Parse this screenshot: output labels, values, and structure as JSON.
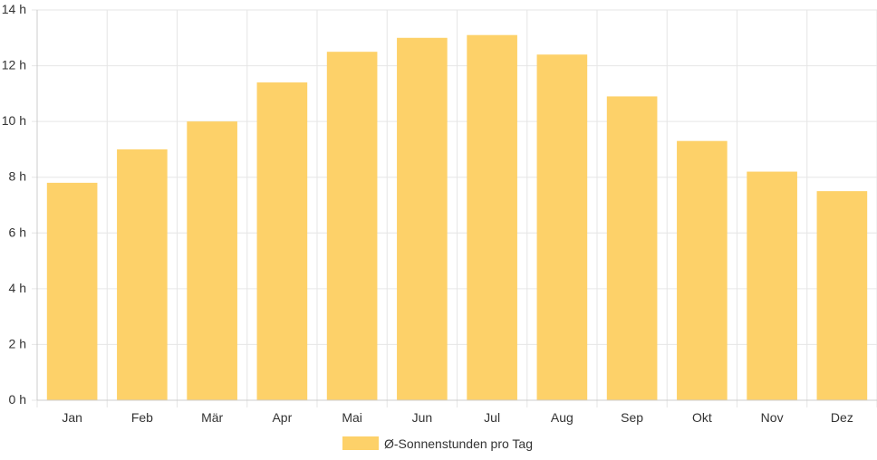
{
  "chart_data": {
    "type": "bar",
    "categories": [
      "Jan",
      "Feb",
      "Mär",
      "Apr",
      "Mai",
      "Jun",
      "Jul",
      "Aug",
      "Sep",
      "Okt",
      "Nov",
      "Dez"
    ],
    "series": [
      {
        "name": "Ø-Sonnenstunden pro Tag",
        "values": [
          7.8,
          9.0,
          10.0,
          11.4,
          12.5,
          13.0,
          13.1,
          12.4,
          10.9,
          9.3,
          8.2,
          7.5
        ],
        "color": "#fdd169"
      }
    ],
    "y_ticks": [
      "0 h",
      "2 h",
      "4 h",
      "6 h",
      "8 h",
      "10 h",
      "12 h",
      "14 h"
    ],
    "ylim": [
      0,
      14
    ],
    "grid": true,
    "legend_position": "bottom"
  },
  "colors": {
    "grid": "#e6e6e6",
    "axis": "#cccccc",
    "text": "#333333"
  }
}
